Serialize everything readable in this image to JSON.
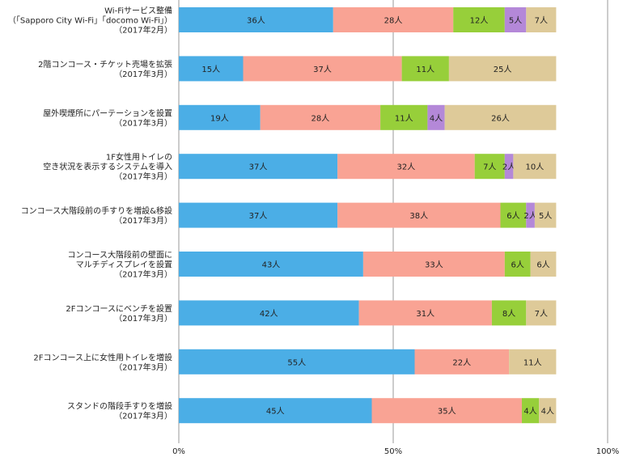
{
  "colors": {
    "blue": "#4baee6",
    "salmon": "#f9a394",
    "green": "#97cf3a",
    "purple": "#b488d8",
    "tan": "#deca99",
    "grid": "#9a9a9a"
  },
  "chart_data": {
    "type": "bar",
    "orientation": "horizontal",
    "stacked": "percent",
    "title": "",
    "xlabel": "",
    "ylabel": "",
    "xlim": [
      0,
      100
    ],
    "grid": true,
    "x_ticks": [
      "0%",
      "50%",
      "100%"
    ],
    "legend": "none",
    "categories": [
      [
        "Wi-Fiサービス整備",
        "（「Sapporo City Wi-Fi」「docomo Wi-Fi」）",
        "（2017年2月）"
      ],
      [
        "2階コンコース・チケット売場を拡張",
        "（2017年3月）"
      ],
      [
        "屋外喫煙所にパーテーションを設置",
        "（2017年3月）"
      ],
      [
        "1F女性用トイレの",
        "空き状況を表示するシステムを導入",
        "（2017年3月）"
      ],
      [
        "コンコース大階段前の手すりを増設&移設",
        "（2017年3月）"
      ],
      [
        "コンコース大階段前の壁面に",
        "マルチディスプレイを設置",
        "（2017年3月）"
      ],
      [
        "2Fコンコースにベンチを設置",
        "（2017年3月）"
      ],
      [
        "2Fコンコース上に女性用トイレを増設",
        "（2017年3月）"
      ],
      [
        "スタンドの階段手すりを増設",
        "（2017年3月）"
      ]
    ],
    "rows": [
      {
        "segments": [
          {
            "c": "blue",
            "v": 36,
            "label": "36人"
          },
          {
            "c": "salmon",
            "v": 28,
            "label": "28人"
          },
          {
            "c": "green",
            "v": 12,
            "label": "12人"
          },
          {
            "c": "purple",
            "v": 5,
            "label": "5人"
          },
          {
            "c": "tan",
            "v": 7,
            "label": "7人"
          }
        ]
      },
      {
        "segments": [
          {
            "c": "blue",
            "v": 15,
            "label": "15人"
          },
          {
            "c": "salmon",
            "v": 37,
            "label": "37人"
          },
          {
            "c": "green",
            "v": 11,
            "label": "11人"
          },
          {
            "c": "tan",
            "v": 25,
            "label": "25人"
          }
        ]
      },
      {
        "segments": [
          {
            "c": "blue",
            "v": 19,
            "label": "19人"
          },
          {
            "c": "salmon",
            "v": 28,
            "label": "28人"
          },
          {
            "c": "green",
            "v": 11,
            "label": "11人"
          },
          {
            "c": "purple",
            "v": 4,
            "label": "4人"
          },
          {
            "c": "tan",
            "v": 26,
            "label": "26人"
          }
        ]
      },
      {
        "segments": [
          {
            "c": "blue",
            "v": 37,
            "label": "37人"
          },
          {
            "c": "salmon",
            "v": 32,
            "label": "32人"
          },
          {
            "c": "green",
            "v": 7,
            "label": "7人"
          },
          {
            "c": "purple",
            "v": 2,
            "label": "2人"
          },
          {
            "c": "tan",
            "v": 10,
            "label": "10人"
          }
        ]
      },
      {
        "segments": [
          {
            "c": "blue",
            "v": 37,
            "label": "37人"
          },
          {
            "c": "salmon",
            "v": 38,
            "label": "38人"
          },
          {
            "c": "green",
            "v": 6,
            "label": "6人"
          },
          {
            "c": "purple",
            "v": 2,
            "label": "2人"
          },
          {
            "c": "tan",
            "v": 5,
            "label": "5人"
          }
        ]
      },
      {
        "segments": [
          {
            "c": "blue",
            "v": 43,
            "label": "43人"
          },
          {
            "c": "salmon",
            "v": 33,
            "label": "33人"
          },
          {
            "c": "green",
            "v": 6,
            "label": "6人"
          },
          {
            "c": "tan",
            "v": 6,
            "label": "6人"
          }
        ]
      },
      {
        "segments": [
          {
            "c": "blue",
            "v": 42,
            "label": "42人"
          },
          {
            "c": "salmon",
            "v": 31,
            "label": "31人"
          },
          {
            "c": "green",
            "v": 8,
            "label": "8人"
          },
          {
            "c": "tan",
            "v": 7,
            "label": "7人"
          }
        ]
      },
      {
        "segments": [
          {
            "c": "blue",
            "v": 55,
            "label": "55人"
          },
          {
            "c": "salmon",
            "v": 22,
            "label": "22人"
          },
          {
            "c": "tan",
            "v": 11,
            "label": "11人"
          }
        ]
      },
      {
        "segments": [
          {
            "c": "blue",
            "v": 45,
            "label": "45人"
          },
          {
            "c": "salmon",
            "v": 35,
            "label": "35人"
          },
          {
            "c": "green",
            "v": 4,
            "label": "4人"
          },
          {
            "c": "tan",
            "v": 4,
            "label": "4人"
          }
        ]
      }
    ]
  }
}
